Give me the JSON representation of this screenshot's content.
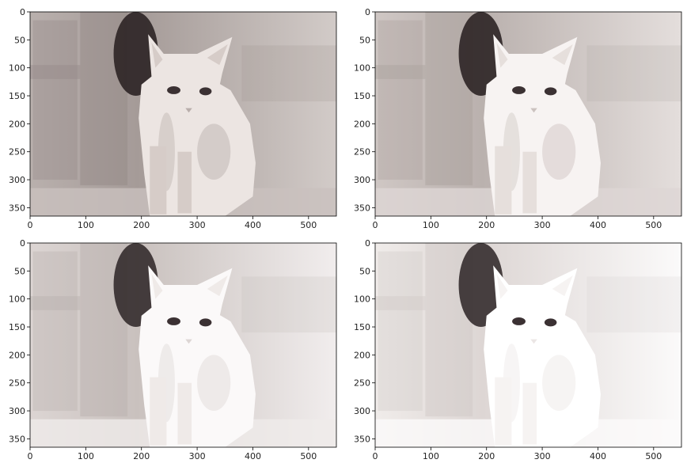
{
  "chart_data": [
    {
      "type": "image",
      "subject": "cat photo (light sepia tone)",
      "variant": 1,
      "xlim": [
        0,
        550
      ],
      "ylim": [
        365,
        0
      ],
      "xticks": [
        0,
        100,
        200,
        300,
        400,
        500
      ],
      "yticks": [
        0,
        50,
        100,
        150,
        200,
        250,
        300,
        350
      ]
    },
    {
      "type": "image",
      "subject": "cat photo (lighter)",
      "variant": 2,
      "xlim": [
        0,
        550
      ],
      "ylim": [
        365,
        0
      ],
      "xticks": [
        0,
        100,
        200,
        300,
        400,
        500
      ],
      "yticks": [
        0,
        50,
        100,
        150,
        200,
        250,
        300,
        350
      ]
    },
    {
      "type": "image",
      "subject": "cat photo (high brightness)",
      "variant": 3,
      "xlim": [
        0,
        550
      ],
      "ylim": [
        365,
        0
      ],
      "xticks": [
        0,
        100,
        200,
        300,
        400,
        500
      ],
      "yticks": [
        0,
        50,
        100,
        150,
        200,
        250,
        300,
        350
      ]
    },
    {
      "type": "image",
      "subject": "cat photo (very high brightness)",
      "variant": 4,
      "xlim": [
        0,
        550
      ],
      "ylim": [
        365,
        0
      ],
      "xticks": [
        0,
        100,
        200,
        300,
        400,
        500
      ],
      "yticks": [
        0,
        50,
        100,
        150,
        200,
        250,
        300,
        350
      ]
    }
  ]
}
